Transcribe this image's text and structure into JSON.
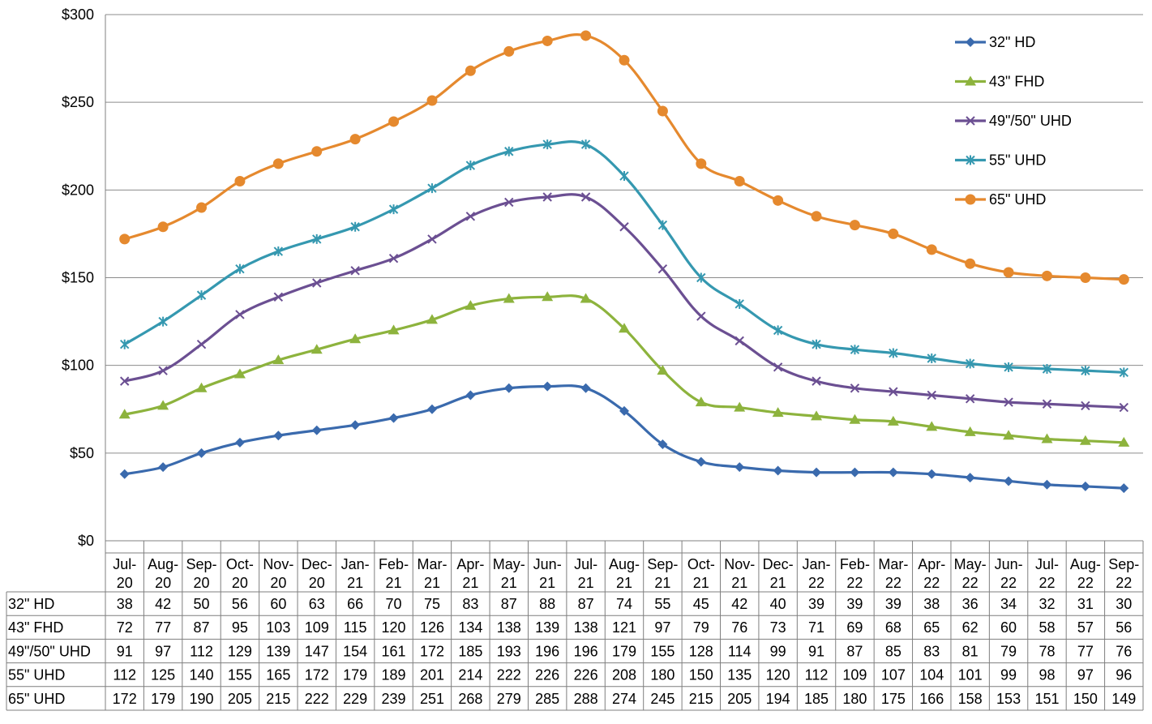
{
  "chart_data": {
    "type": "line",
    "title": "",
    "xlabel": "",
    "ylabel": "",
    "ylim": [
      0,
      300
    ],
    "yticks": [
      "$0",
      "$50",
      "$100",
      "$150",
      "$200",
      "$250",
      "$300"
    ],
    "ytick_values": [
      0,
      50,
      100,
      150,
      200,
      250,
      300
    ],
    "grid": "horizontal",
    "legend_position": "top-right",
    "categories": [
      [
        "Jul-",
        "20"
      ],
      [
        "Aug-",
        "20"
      ],
      [
        "Sep-",
        "20"
      ],
      [
        "Oct-",
        "20"
      ],
      [
        "Nov-",
        "20"
      ],
      [
        "Dec-",
        "20"
      ],
      [
        "Jan-",
        "21"
      ],
      [
        "Feb-",
        "21"
      ],
      [
        "Mar-",
        "21"
      ],
      [
        "Apr-",
        "21"
      ],
      [
        "May-",
        "21"
      ],
      [
        "Jun-",
        "21"
      ],
      [
        "Jul-",
        "21"
      ],
      [
        "Aug-",
        "21"
      ],
      [
        "Sep-",
        "21"
      ],
      [
        "Oct-",
        "21"
      ],
      [
        "Nov-",
        "21"
      ],
      [
        "Dec-",
        "21"
      ],
      [
        "Jan-",
        "22"
      ],
      [
        "Feb-",
        "22"
      ],
      [
        "Mar-",
        "22"
      ],
      [
        "Apr-",
        "22"
      ],
      [
        "May-",
        "22"
      ],
      [
        "Jun-",
        "22"
      ],
      [
        "Jul-",
        "22"
      ],
      [
        "Aug-",
        "22"
      ],
      [
        "Sep-",
        "22"
      ]
    ],
    "series": [
      {
        "name": "32\" HD",
        "color": "#3a6aad",
        "marker": "diamond",
        "values": [
          38,
          42,
          50,
          56,
          60,
          63,
          66,
          70,
          75,
          83,
          87,
          88,
          87,
          74,
          55,
          45,
          42,
          40,
          39,
          39,
          39,
          38,
          36,
          34,
          32,
          31,
          30
        ]
      },
      {
        "name": "43\" FHD",
        "color": "#8db33d",
        "marker": "triangle",
        "values": [
          72,
          77,
          87,
          95,
          103,
          109,
          115,
          120,
          126,
          134,
          138,
          139,
          138,
          121,
          97,
          79,
          76,
          73,
          71,
          69,
          68,
          65,
          62,
          60,
          58,
          57,
          56
        ]
      },
      {
        "name": "49\"/50\" UHD",
        "color": "#6b4f92",
        "marker": "x",
        "values": [
          91,
          97,
          112,
          129,
          139,
          147,
          154,
          161,
          172,
          185,
          193,
          196,
          196,
          179,
          155,
          128,
          114,
          99,
          91,
          87,
          85,
          83,
          81,
          79,
          78,
          77,
          76
        ]
      },
      {
        "name": "55\" UHD",
        "color": "#3598b0",
        "marker": "star",
        "values": [
          112,
          125,
          140,
          155,
          165,
          172,
          179,
          189,
          201,
          214,
          222,
          226,
          226,
          208,
          180,
          150,
          135,
          120,
          112,
          109,
          107,
          104,
          101,
          99,
          98,
          97,
          96
        ]
      },
      {
        "name": "65\" UHD",
        "color": "#e5892e",
        "marker": "circle",
        "values": [
          172,
          179,
          190,
          205,
          215,
          222,
          229,
          239,
          251,
          268,
          279,
          285,
          288,
          274,
          245,
          215,
          205,
          194,
          185,
          180,
          175,
          166,
          158,
          153,
          151,
          150,
          149
        ]
      }
    ]
  }
}
